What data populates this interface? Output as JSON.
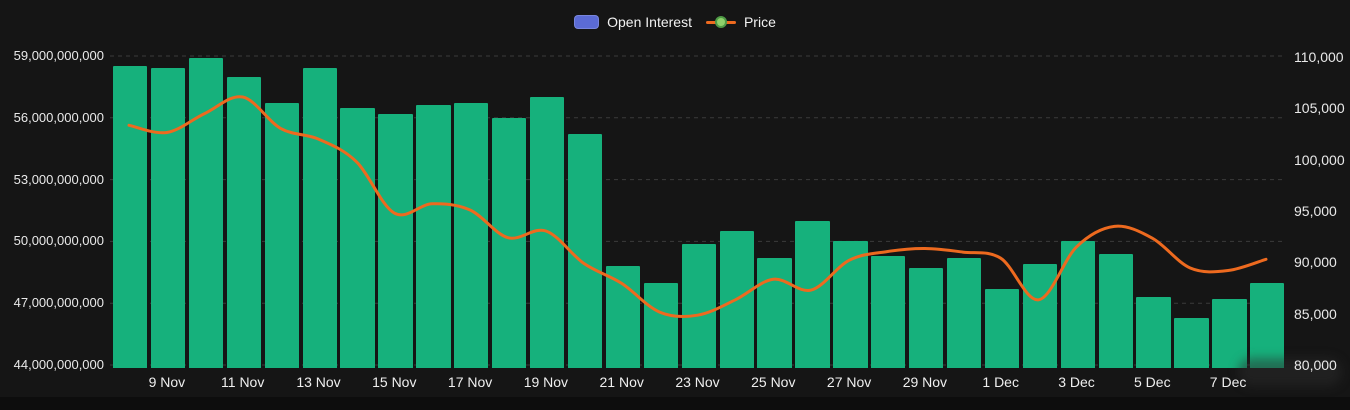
{
  "legend": {
    "open_interest_label": "Open Interest",
    "price_label": "Price"
  },
  "colors": {
    "background": "#151515",
    "bar": "#16b17c",
    "line": "#ed6a1f",
    "legend_blue": "#5b6bd5",
    "grid": "#3b3b3b",
    "axis_text": "#e9e9e9",
    "dot_fill": "#8ed06b",
    "dot_ring": "#4e9a45"
  },
  "chart_data": {
    "type": "bar+line combo",
    "title": "",
    "xlabel": "",
    "ylabel_left": "Open Interest",
    "ylabel_right": "Price",
    "grid": true,
    "legend_position": "top-center",
    "categories": [
      "8 Nov",
      "9 Nov",
      "10 Nov",
      "11 Nov",
      "12 Nov",
      "13 Nov",
      "14 Nov",
      "15 Nov",
      "16 Nov",
      "17 Nov",
      "18 Nov",
      "19 Nov",
      "20 Nov",
      "21 Nov",
      "22 Nov",
      "23 Nov",
      "24 Nov",
      "25 Nov",
      "26 Nov",
      "27 Nov",
      "28 Nov",
      "29 Nov",
      "30 Nov",
      "1 Dec",
      "2 Dec",
      "3 Dec",
      "4 Dec",
      "5 Dec",
      "6 Dec",
      "7 Dec",
      "8 Dec"
    ],
    "x_tick_labels": [
      "9 Nov",
      "11 Nov",
      "13 Nov",
      "15 Nov",
      "17 Nov",
      "19 Nov",
      "21 Nov",
      "23 Nov",
      "25 Nov",
      "27 Nov",
      "29 Nov",
      "1 Dec",
      "3 Dec",
      "5 Dec",
      "7 Dec"
    ],
    "series": [
      {
        "name": "Open Interest",
        "type": "bar",
        "axis": "left",
        "values": [
          58500000000,
          58400000000,
          58900000000,
          58000000000,
          56700000000,
          58400000000,
          56500000000,
          56200000000,
          56600000000,
          56700000000,
          56000000000,
          57000000000,
          55200000000,
          48800000000,
          48000000000,
          49900000000,
          50500000000,
          49200000000,
          51000000000,
          50000000000,
          49300000000,
          48700000000,
          49200000000,
          47700000000,
          48900000000,
          50000000000,
          49400000000,
          47300000000,
          46300000000,
          47200000000,
          48000000000
        ]
      },
      {
        "name": "Price",
        "type": "line",
        "axis": "right",
        "values": [
          103350,
          102650,
          104500,
          106100,
          103050,
          102000,
          99800,
          94800,
          95700,
          95100,
          92400,
          93050,
          89900,
          87950,
          85150,
          84850,
          86350,
          88350,
          87300,
          90200,
          91050,
          91350,
          91000,
          90400,
          86350,
          91500,
          93500,
          92350,
          89450,
          89200,
          90300
        ]
      }
    ],
    "left_axis": {
      "min": 44000000000,
      "max": 59000000000,
      "tick_step": 3000000000,
      "tick_labels": [
        "59,000,000,000",
        "56,000,000,000",
        "53,000,000,000",
        "50,000,000,000",
        "47,000,000,000",
        "44,000,000,000"
      ],
      "tick_values": [
        59000000000,
        56000000000,
        53000000000,
        50000000000,
        47000000000,
        44000000000
      ]
    },
    "right_axis": {
      "min": 80000,
      "max": 110000,
      "tick_step": 5000,
      "tick_labels": [
        "110,000",
        "105,000",
        "100,000",
        "95,000",
        "90,000",
        "85,000",
        "80,000"
      ],
      "tick_values": [
        110000,
        105000,
        100000,
        95000,
        90000,
        85000,
        80000
      ]
    }
  }
}
